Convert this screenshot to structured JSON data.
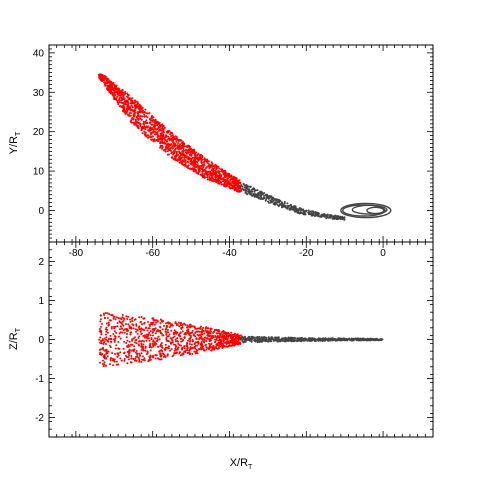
{
  "chart_data": [
    {
      "type": "scatter",
      "title": "",
      "xlabel": "",
      "ylabel_main": "Y/R",
      "ylabel_sub": "T",
      "xlim": [
        -87,
        13
      ],
      "ylim": [
        -8,
        42
      ],
      "x_ticks": [
        -80,
        -60,
        -40,
        -20,
        0
      ],
      "y_ticks": [
        0,
        10,
        20,
        30,
        40
      ],
      "x_tick_labels_shown": true,
      "grid": false,
      "series": [
        {
          "color": "#ff0000",
          "segment": "outer",
          "x_range": [
            -74,
            -37
          ],
          "band_center": [
            [
              -74,
              34.5
            ],
            [
              -65,
              25
            ],
            [
              -55,
              16.5
            ],
            [
              -46,
              10.5
            ],
            [
              -37,
              6
            ]
          ],
          "band_halfwidth": [
            [
              -74,
              0.8
            ],
            [
              -65,
              3.5
            ],
            [
              -55,
              3.2
            ],
            [
              -46,
              2.6
            ],
            [
              -37,
              1.5
            ]
          ]
        },
        {
          "color": "#444444",
          "segment": "inner",
          "x_range": [
            -37,
            -10
          ],
          "band_center": [
            [
              -37,
              6
            ],
            [
              -30,
              3
            ],
            [
              -22,
              0
            ],
            [
              -15,
              -1.5
            ],
            [
              -10,
              -2
            ]
          ],
          "band_halfwidth": [
            [
              -37,
              1.3
            ],
            [
              -28,
              0.9
            ],
            [
              -18,
              0.6
            ],
            [
              -10,
              0.4
            ]
          ]
        },
        {
          "color": "#444444",
          "segment": "orbits",
          "ellipses": [
            {
              "cx": -5,
              "cy": 0,
              "rx": 5.5,
              "ry": 1.4
            },
            {
              "cx": -4.5,
              "cy": 0,
              "rx": 6.5,
              "ry": 1.8
            },
            {
              "cx": -3.5,
              "cy": 0.2,
              "rx": 4.5,
              "ry": 1.1
            },
            {
              "cx": -2,
              "cy": 0,
              "rx": 2.2,
              "ry": 0.8
            }
          ]
        }
      ]
    },
    {
      "type": "scatter",
      "title": "",
      "xlabel_main": "X/R",
      "xlabel_sub": "T",
      "ylabel_main": "Z/R",
      "ylabel_sub": "T",
      "xlim": [
        -87,
        13
      ],
      "ylim": [
        -2.5,
        2.5
      ],
      "x_ticks": [
        -80,
        -60,
        -40,
        -20,
        0
      ],
      "y_ticks": [
        -2,
        -1,
        0,
        1,
        2
      ],
      "grid": false,
      "series": [
        {
          "color": "#ff0000",
          "segment": "outer",
          "x_range": [
            -74,
            -37
          ],
          "z_halfwidth": [
            [
              -74,
              0.7
            ],
            [
              -60,
              0.55
            ],
            [
              -45,
              0.3
            ],
            [
              -37,
              0.12
            ]
          ]
        },
        {
          "color": "#444444",
          "segment": "inner",
          "x_range": [
            -37,
            0
          ],
          "z_halfwidth": [
            [
              -37,
              0.08
            ],
            [
              -20,
              0.04
            ],
            [
              0,
              0.02
            ]
          ]
        }
      ]
    }
  ]
}
